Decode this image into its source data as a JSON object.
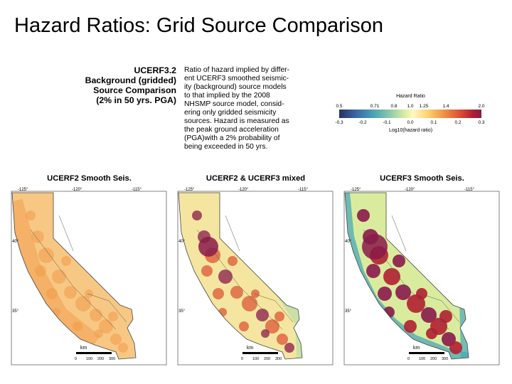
{
  "slide_title": "Hazard Ratios: Grid Source Comparison",
  "figure": {
    "heading_lines": [
      "UCERF3.2",
      "Background (gridded)",
      "Source Comparison",
      "(2% in 50 yrs. PGA)"
    ],
    "description_lines": [
      "Ratio of hazard implied by differ-",
      "ent UCERF3 smoothed seismic-",
      "ity (background) source models",
      "to that implied by the 2008",
      "NHSMP source model, consid-",
      "ering only gridded seismicity",
      "sources. Hazard is measured as",
      "the peak ground acceleration",
      "(PGA)with a 2% probability of",
      "being exceeded in 50 yrs."
    ]
  },
  "colorbar": {
    "title": "Hazard Ratio",
    "top_ticks": [
      "0.5",
      "0.71",
      "1.0",
      "1.4",
      "2.0"
    ],
    "top_ticks_minor": [
      "0.8",
      "1.25"
    ],
    "bottom_ticks": [
      "-0.3",
      "-0.2",
      "-0.1",
      "0.0",
      "0.1",
      "0.2",
      "0.3"
    ],
    "axis_label": "Log10(hazard ratio)",
    "colors": {
      "low": "#2b3a6e",
      "mid_low": "#4aa8b8",
      "neutral": "#fff7c8",
      "mid_high": "#f29a4a",
      "high": "#8a1a4a"
    }
  },
  "maps": [
    {
      "title": "UCERF2 Smooth Seis.",
      "lon_labels": [
        "-125°",
        "-120°",
        "-115°"
      ],
      "lat_labels": [
        "40°",
        "35°"
      ],
      "scale_unit": "km",
      "scale_ticks": [
        "0",
        "100",
        "200",
        "300"
      ],
      "ratio_level": "moderate"
    },
    {
      "title": "UCERF2 & UCERF3 mixed",
      "lon_labels": [
        "-125°",
        "-120°",
        "-115°"
      ],
      "lat_labels": [
        "40°",
        "35°"
      ],
      "scale_unit": "km",
      "scale_ticks": [
        "0",
        "100",
        "200",
        "300"
      ],
      "ratio_level": "mixed"
    },
    {
      "title": "UCERF3 Smooth Seis.",
      "lon_labels": [
        "-125°",
        "-120°",
        "-115°"
      ],
      "lat_labels": [
        "40°",
        "35°"
      ],
      "scale_unit": "km",
      "scale_ticks": [
        "0",
        "100",
        "200",
        "300"
      ],
      "ratio_level": "extreme"
    }
  ]
}
